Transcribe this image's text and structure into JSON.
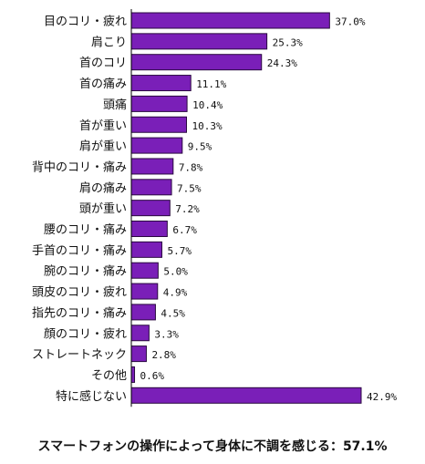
{
  "chart_data": {
    "type": "bar",
    "orientation": "horizontal",
    "categories": [
      "目のコリ・疲れ",
      "肩こり",
      "首のコリ",
      "首の痛み",
      "頭痛",
      "首が重い",
      "肩が重い",
      "背中のコリ・痛み",
      "肩の痛み",
      "頭が重い",
      "腰のコリ・痛み",
      "手首のコリ・痛み",
      "腕のコリ・痛み",
      "頭皮のコリ・疲れ",
      "指先のコリ・痛み",
      "顔のコリ・疲れ",
      "ストレートネック",
      "その他",
      "特に感じない"
    ],
    "values": [
      37.0,
      25.3,
      24.3,
      11.1,
      10.4,
      10.3,
      9.5,
      7.8,
      7.5,
      7.2,
      6.7,
      5.7,
      5.0,
      4.9,
      4.5,
      3.3,
      2.8,
      0.6,
      42.9
    ],
    "value_labels": [
      "37.0%",
      "25.3%",
      "24.3%",
      "11.1%",
      "10.4%",
      "10.3%",
      "9.5%",
      "7.8%",
      "7.5%",
      "7.2%",
      "6.7%",
      "5.7%",
      "5.0%",
      "4.9%",
      "4.5%",
      "3.3%",
      "2.8%",
      "0.6%",
      "42.9%"
    ],
    "title": "",
    "xlabel": "",
    "ylabel": "",
    "xlim": [
      0,
      42.9
    ],
    "grid": false,
    "legend": "none",
    "bar_color": "#7a1fb8",
    "bar_edge_color": "#2a0a40"
  },
  "footer": {
    "text": "スマートフォンの操作によって身体に不調を感じる：57.1%"
  }
}
